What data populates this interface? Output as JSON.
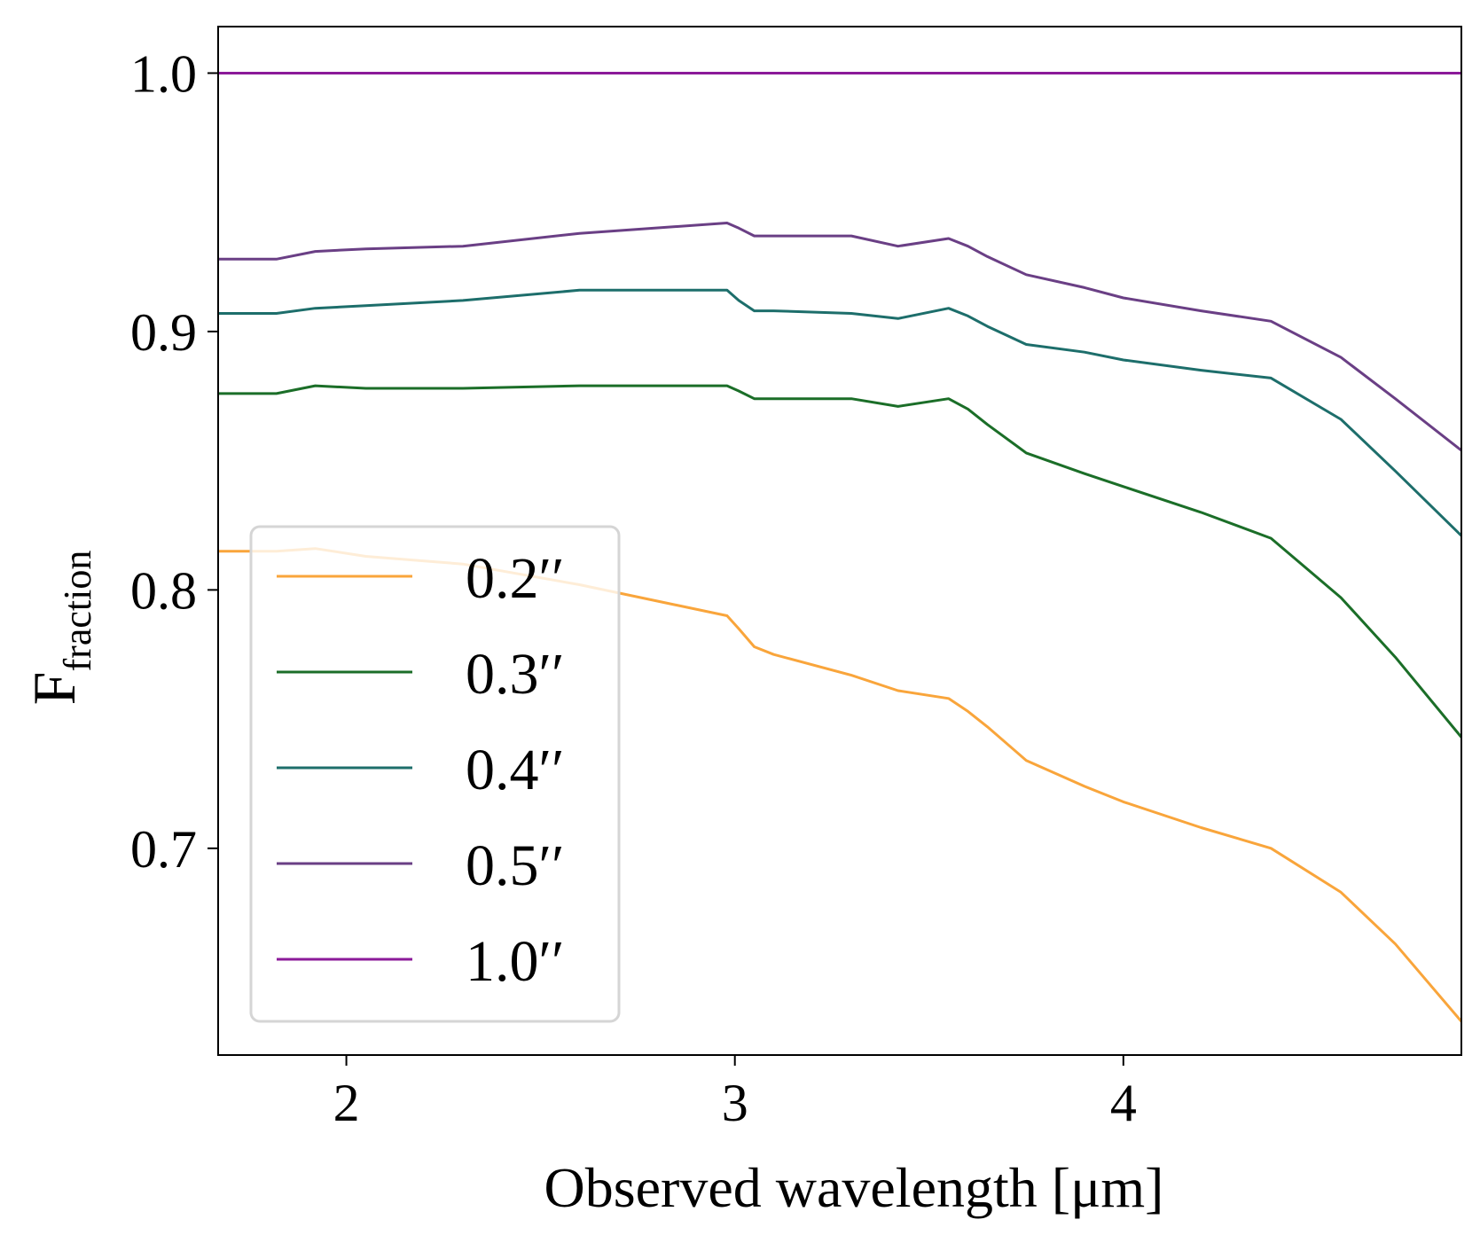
{
  "chart_data": {
    "type": "line",
    "title": "",
    "xlabel": "Observed wavelength [μm]",
    "ylabel_main": "F",
    "ylabel_sub": "fraction",
    "xlim": [
      1.67,
      4.87
    ],
    "ylim": [
      0.62,
      1.018
    ],
    "xticks": [
      2,
      3,
      4
    ],
    "xtick_labels": [
      "2",
      "3",
      "4"
    ],
    "yticks": [
      0.7,
      0.8,
      0.9,
      1.0
    ],
    "ytick_labels": [
      "0.7",
      "0.8",
      "0.9",
      "1.0"
    ],
    "grid": false,
    "legend_position": "lower-left",
    "series": [
      {
        "name": "0.2′′",
        "color": "#f9a53b",
        "x": [
          1.67,
          1.82,
          1.92,
          2.05,
          2.3,
          2.6,
          2.98,
          3.01,
          3.05,
          3.1,
          3.3,
          3.42,
          3.55,
          3.6,
          3.65,
          3.75,
          3.9,
          4.0,
          4.2,
          4.38,
          4.56,
          4.7,
          4.87
        ],
        "values": [
          0.815,
          0.815,
          0.816,
          0.813,
          0.81,
          0.802,
          0.79,
          0.785,
          0.778,
          0.775,
          0.767,
          0.761,
          0.758,
          0.753,
          0.747,
          0.734,
          0.724,
          0.718,
          0.708,
          0.7,
          0.683,
          0.663,
          0.633
        ]
      },
      {
        "name": "0.3′′",
        "color": "#1b6e28",
        "x": [
          1.67,
          1.82,
          1.92,
          2.05,
          2.3,
          2.6,
          2.98,
          3.01,
          3.05,
          3.1,
          3.3,
          3.42,
          3.55,
          3.6,
          3.65,
          3.75,
          3.9,
          4.0,
          4.2,
          4.38,
          4.56,
          4.7,
          4.87
        ],
        "values": [
          0.876,
          0.876,
          0.879,
          0.878,
          0.878,
          0.879,
          0.879,
          0.877,
          0.874,
          0.874,
          0.874,
          0.871,
          0.874,
          0.87,
          0.864,
          0.853,
          0.845,
          0.84,
          0.83,
          0.82,
          0.797,
          0.774,
          0.743
        ]
      },
      {
        "name": "0.4′′",
        "color": "#1d6e6b",
        "x": [
          1.67,
          1.82,
          1.92,
          2.05,
          2.3,
          2.6,
          2.98,
          3.01,
          3.05,
          3.1,
          3.3,
          3.42,
          3.55,
          3.6,
          3.65,
          3.75,
          3.9,
          4.0,
          4.2,
          4.38,
          4.56,
          4.7,
          4.87
        ],
        "values": [
          0.907,
          0.907,
          0.909,
          0.91,
          0.912,
          0.916,
          0.916,
          0.912,
          0.908,
          0.908,
          0.907,
          0.905,
          0.909,
          0.906,
          0.902,
          0.895,
          0.892,
          0.889,
          0.885,
          0.882,
          0.866,
          0.846,
          0.821
        ]
      },
      {
        "name": "0.5′′",
        "color": "#6a3f85",
        "x": [
          1.67,
          1.82,
          1.92,
          2.05,
          2.3,
          2.6,
          2.98,
          3.01,
          3.05,
          3.1,
          3.3,
          3.42,
          3.55,
          3.6,
          3.65,
          3.75,
          3.9,
          4.0,
          4.2,
          4.38,
          4.56,
          4.7,
          4.87
        ],
        "values": [
          0.928,
          0.928,
          0.931,
          0.932,
          0.933,
          0.938,
          0.942,
          0.94,
          0.937,
          0.937,
          0.937,
          0.933,
          0.936,
          0.933,
          0.929,
          0.922,
          0.917,
          0.913,
          0.908,
          0.904,
          0.89,
          0.874,
          0.854
        ]
      },
      {
        "name": "1.0′′",
        "color": "#8b1a99",
        "x": [
          1.67,
          4.87
        ],
        "values": [
          1.0,
          1.0
        ]
      }
    ]
  }
}
